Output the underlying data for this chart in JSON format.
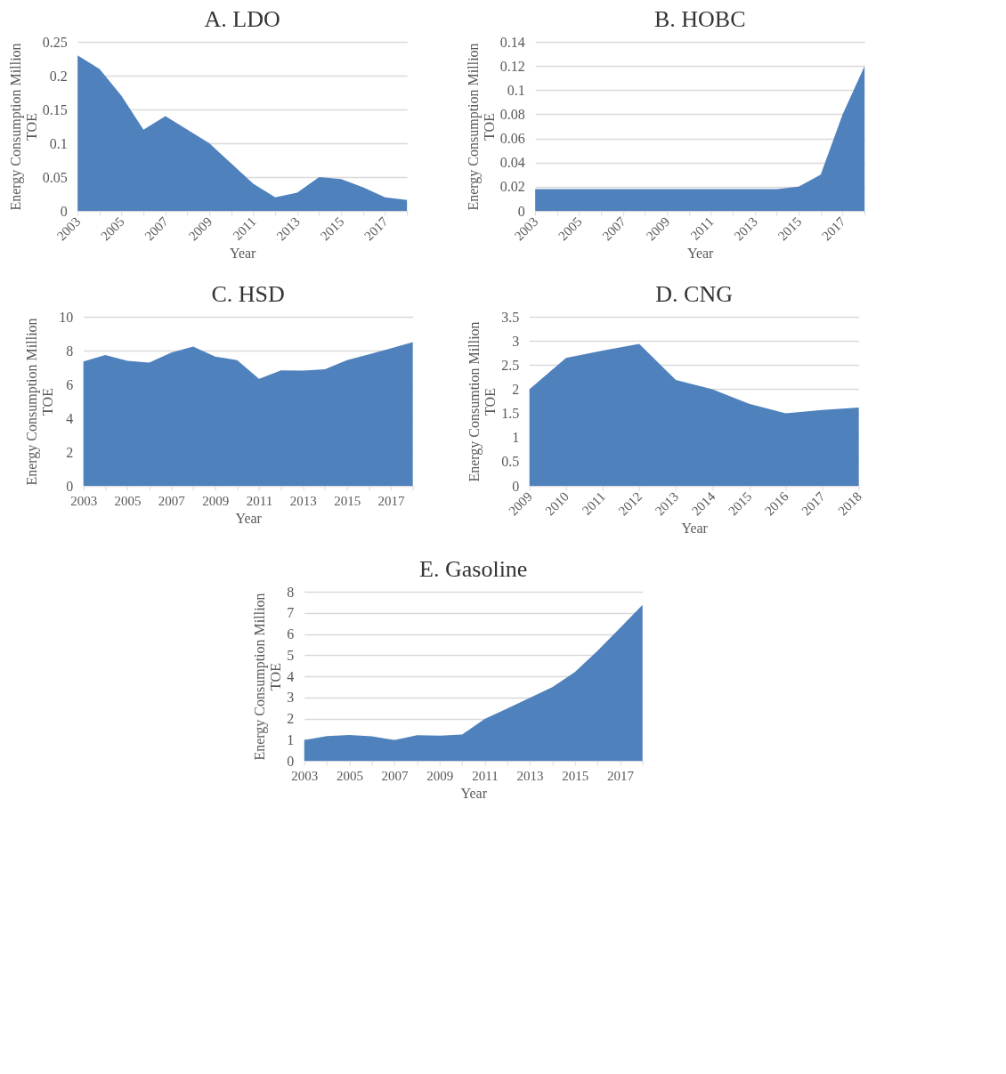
{
  "chart_data": [
    {
      "type": "area",
      "title": "A.  LDO",
      "xlabel": "Year",
      "ylabel": "Energy Consumption Million TOE",
      "categories": [
        "2003",
        null,
        "2005",
        null,
        "2007",
        null,
        "2009",
        null,
        "2011",
        null,
        "2013",
        null,
        "2015",
        null,
        "2017",
        null
      ],
      "series": [
        {
          "color": "#4f81bd",
          "values": [
            0.23,
            0.21,
            0.17,
            0.12,
            0.14,
            0.12,
            0.1,
            0.07,
            0.04,
            0.02,
            0.027,
            0.05,
            0.047,
            0.035,
            0.02,
            0.016
          ]
        }
      ],
      "ylim": [
        0,
        0.25
      ],
      "yticks": [
        0,
        0.05,
        0.1,
        0.15,
        0.2,
        0.25
      ],
      "grid": "y"
    },
    {
      "type": "area",
      "title": "B.  HOBC",
      "xlabel": "Year",
      "ylabel": "Energy Consumption Million TOE",
      "categories": [
        "2003",
        null,
        "2005",
        null,
        "2007",
        null,
        "2009",
        null,
        "2011",
        null,
        "2013",
        null,
        "2015",
        null,
        "2017",
        null
      ],
      "series": [
        {
          "color": "#4f81bd",
          "values": [
            0.018,
            0.018,
            0.018,
            0.018,
            0.018,
            0.018,
            0.018,
            0.018,
            0.018,
            0.018,
            0.018,
            0.018,
            0.02,
            0.03,
            0.08,
            0.12
          ]
        }
      ],
      "ylim": [
        0,
        0.14
      ],
      "yticks": [
        0,
        0.02,
        0.04,
        0.06,
        0.08,
        0.1,
        0.12,
        0.14
      ],
      "grid": "y"
    },
    {
      "type": "area",
      "title": "C.  HSD",
      "xlabel": "Year",
      "ylabel": "Energy Consumption Million TOE",
      "categories": [
        "2003",
        null,
        "2005",
        null,
        "2007",
        null,
        "2009",
        null,
        "2011",
        null,
        "2013",
        null,
        "2015",
        null,
        "2017",
        null
      ],
      "series": [
        {
          "color": "#4f81bd",
          "values": [
            7.36,
            7.74,
            7.39,
            7.29,
            7.88,
            8.24,
            7.65,
            7.43,
            6.33,
            6.83,
            6.82,
            6.9,
            7.43,
            7.78,
            8.13,
            8.5
          ]
        }
      ],
      "ylim": [
        0,
        10
      ],
      "yticks": [
        0,
        2,
        4,
        6,
        8,
        10
      ],
      "grid": "y"
    },
    {
      "type": "area",
      "title": "D.  CNG",
      "xlabel": "Year",
      "ylabel": "Energy Consumtion Million TOE",
      "categories": [
        "2009",
        "2010",
        "2011",
        "2012",
        "2013",
        "2014",
        "2015",
        "2016",
        "2017",
        "2018"
      ],
      "series": [
        {
          "color": "#4f81bd",
          "values": [
            2.0,
            2.65,
            2.8,
            2.94,
            2.19,
            2.0,
            1.7,
            1.5,
            1.57,
            1.62
          ]
        }
      ],
      "ylim": [
        0,
        3.5
      ],
      "yticks": [
        0,
        0.5,
        1,
        1.5,
        2,
        2.5,
        3,
        3.5
      ],
      "grid": "y"
    },
    {
      "type": "area",
      "title": "E.  Gasoline",
      "xlabel": "Year",
      "ylabel": "Energy Consumption Million TOE",
      "categories": [
        "2003",
        null,
        "2005",
        null,
        "2007",
        null,
        "2009",
        null,
        "2011",
        null,
        "2013",
        null,
        "2015",
        null,
        "2017",
        null
      ],
      "series": [
        {
          "color": "#4f81bd",
          "values": [
            0.98,
            1.17,
            1.22,
            1.16,
            0.98,
            1.21,
            1.19,
            1.24,
            1.98,
            2.47,
            2.98,
            3.48,
            4.2,
            5.2,
            6.28,
            7.38
          ]
        }
      ],
      "ylim": [
        0,
        8
      ],
      "yticks": [
        0,
        1,
        2,
        3,
        4,
        5,
        6,
        7,
        8
      ],
      "grid": "y"
    }
  ]
}
